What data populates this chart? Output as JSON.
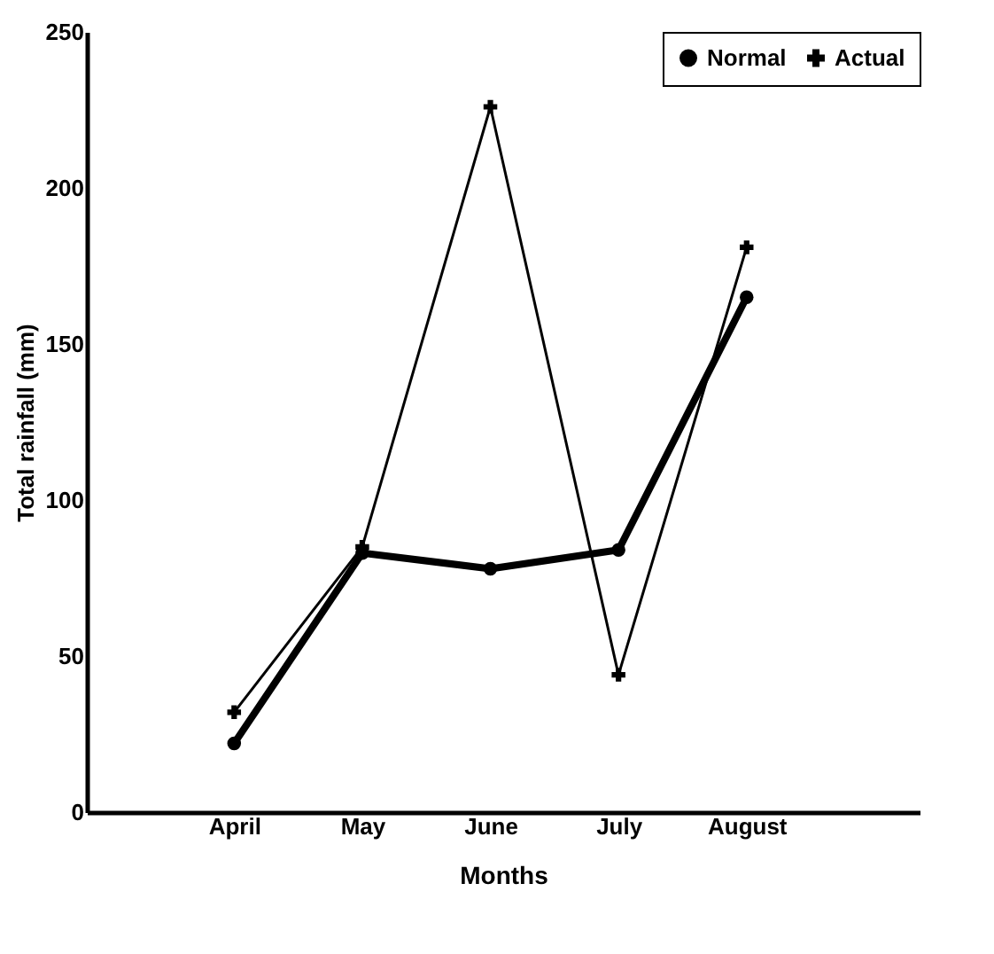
{
  "chart_data": {
    "type": "line",
    "xlabel": "Months",
    "ylabel": "Total rainfall (mm)",
    "categories": [
      "April",
      "May",
      "June",
      "July",
      "August"
    ],
    "series": [
      {
        "name": "Normal",
        "color": "#000000",
        "marker": "circle",
        "values": [
          22,
          83,
          78,
          84,
          165
        ]
      },
      {
        "name": "Actual",
        "color": "#000000",
        "marker": "cross",
        "values": [
          32,
          85,
          226,
          44,
          181
        ]
      }
    ],
    "ylim": [
      0,
      250
    ],
    "yticks": [
      0,
      50,
      100,
      150,
      200,
      250
    ],
    "grid": false,
    "legend": "top right",
    "line_style": "solid"
  }
}
